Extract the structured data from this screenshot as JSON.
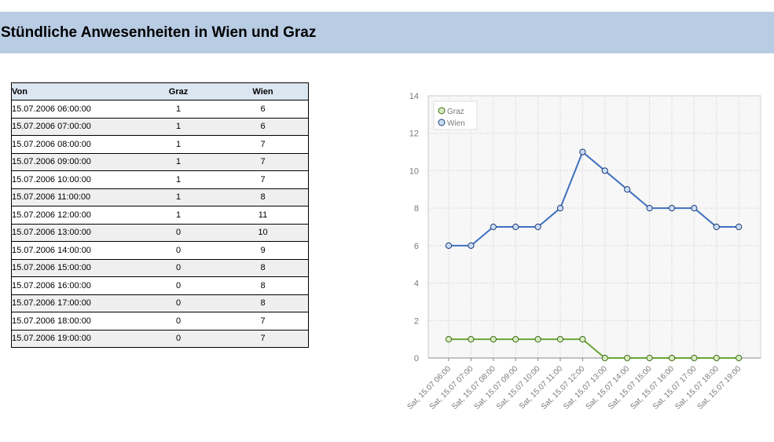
{
  "header": {
    "title": "Stündliche Anwesenheiten in Wien und Graz"
  },
  "table": {
    "columns": [
      "Von",
      "Graz",
      "Wien"
    ],
    "rows": [
      [
        "15.07.2006 06:00:00",
        "1",
        "6"
      ],
      [
        "15.07.2006 07:00:00",
        "1",
        "6"
      ],
      [
        "15.07.2006 08:00:00",
        "1",
        "7"
      ],
      [
        "15.07.2006 09:00:00",
        "1",
        "7"
      ],
      [
        "15.07.2006 10:00:00",
        "1",
        "7"
      ],
      [
        "15.07.2006 11:00:00",
        "1",
        "8"
      ],
      [
        "15.07.2006 12:00:00",
        "1",
        "11"
      ],
      [
        "15.07.2006 13:00:00",
        "0",
        "10"
      ],
      [
        "15.07.2006 14:00:00",
        "0",
        "9"
      ],
      [
        "15.07.2006 15:00:00",
        "0",
        "8"
      ],
      [
        "15.07.2006 16:00:00",
        "0",
        "8"
      ],
      [
        "15.07.2006 17:00:00",
        "0",
        "8"
      ],
      [
        "15.07.2006 18:00:00",
        "0",
        "7"
      ],
      [
        "15.07.2006 19:00:00",
        "0",
        "7"
      ]
    ]
  },
  "chart_data": {
    "type": "line",
    "title": "",
    "xlabel": "",
    "ylabel": "",
    "categories": [
      "Sat, 15.07 06:00",
      "Sat, 15.07 07:00",
      "Sat, 15.07 08:00",
      "Sat, 15.07 09:00",
      "Sat, 15.07 10:00",
      "Sat, 15.07 11:00",
      "Sat, 15.07 12:00",
      "Sat, 15.07 13:00",
      "Sat, 15.07 14:00",
      "Sat, 15.07 15:00",
      "Sat, 15.07 16:00",
      "Sat, 15.07 17:00",
      "Sat, 15.07 18:00",
      "Sat, 15.07 19:00"
    ],
    "series": [
      {
        "name": "Graz",
        "color": "#6aa636",
        "values": [
          1,
          1,
          1,
          1,
          1,
          1,
          1,
          0,
          0,
          0,
          0,
          0,
          0,
          0
        ]
      },
      {
        "name": "Wien",
        "color": "#3f6fbf",
        "values": [
          6,
          6,
          7,
          7,
          7,
          8,
          11,
          10,
          9,
          8,
          8,
          8,
          7,
          7
        ]
      }
    ],
    "yticks": [
      0,
      2,
      4,
      6,
      8,
      10,
      12,
      14
    ],
    "ylim": [
      0,
      14
    ],
    "grid": true,
    "legend": "top-left"
  }
}
